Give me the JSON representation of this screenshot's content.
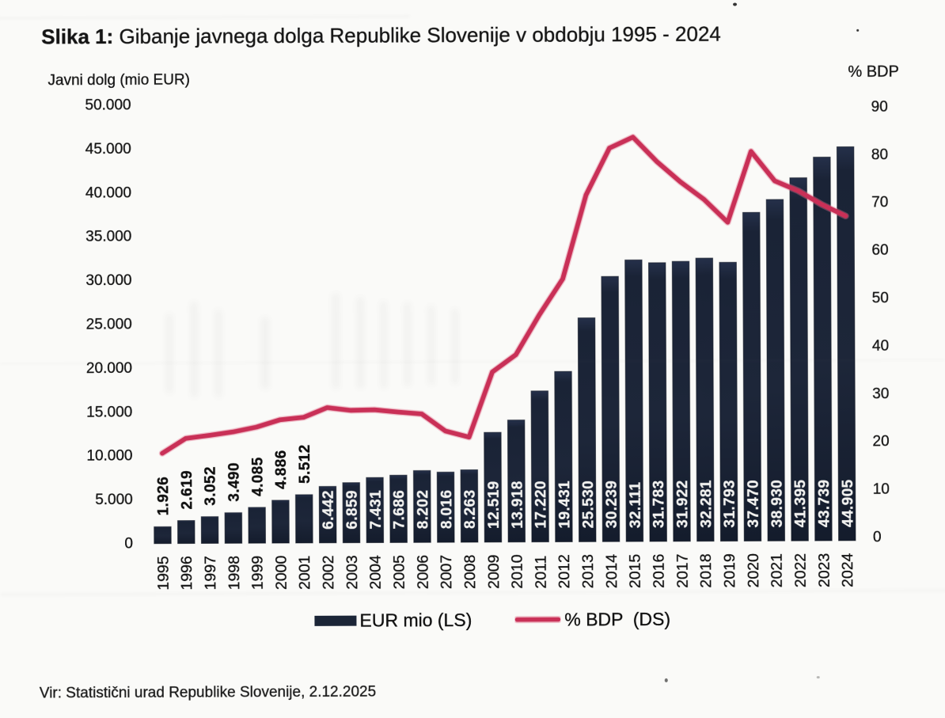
{
  "title": {
    "label": "Slika 1:",
    "text": " Gibanje javnega dolga Republike Slovenije v obdobju 1995 - 2024"
  },
  "source": "Vir: Statistični urad Republike Slovenije, 2.12.2025",
  "legend": [
    {
      "label": "EUR mio (LS)",
      "swatch": "bar",
      "color": "#1b2537"
    },
    {
      "label": "% BDP  (DS)",
      "swatch": "line",
      "color": "#cb3059"
    }
  ],
  "chart_data": {
    "type": "bar+line",
    "categories": [
      "1995",
      "1996",
      "1997",
      "1998",
      "1999",
      "2000",
      "2001",
      "2002",
      "2003",
      "2004",
      "2005",
      "2006",
      "2007",
      "2008",
      "2009",
      "2010",
      "2011",
      "2012",
      "2013",
      "2014",
      "2015",
      "2016",
      "2017",
      "2018",
      "2019",
      "2020",
      "2021",
      "2022",
      "2023",
      "2024"
    ],
    "series": [
      {
        "name": "EUR mio (LS)",
        "type": "bar",
        "axis": "left",
        "values": [
          1926,
          2619,
          3052,
          3490,
          4085,
          4886,
          5512,
          6442,
          6859,
          7431,
          7686,
          8202,
          8016,
          8263,
          12519,
          13918,
          17220,
          19431,
          25530,
          30239,
          32111,
          31783,
          31922,
          32281,
          31793,
          37470,
          38930,
          41395,
          43739,
          44905
        ],
        "labels": [
          "1.926",
          "2.619",
          "3.052",
          "3.490",
          "4.085",
          "4.886",
          "5.512",
          "6.442",
          "6.859",
          "7.431",
          "7.686",
          "8.202",
          "8.016",
          "8.263",
          "12.519",
          "13.918",
          "17.220",
          "19.431",
          "25.530",
          "30.239",
          "32.111",
          "31.783",
          "31.922",
          "32.281",
          "31.793",
          "37.470",
          "38.930",
          "41.395",
          "43.739",
          "44.905"
        ]
      },
      {
        "name": "% BDP (DS)",
        "type": "line",
        "axis": "right",
        "values": [
          17.9,
          21.0,
          21.6,
          22.3,
          23.3,
          24.8,
          25.3,
          27.3,
          26.7,
          26.8,
          26.3,
          25.9,
          22.3,
          21.0,
          34.6,
          38.2,
          46.5,
          54.0,
          71.5,
          81.3,
          83.6,
          78.5,
          74.2,
          70.5,
          65.7,
          80.5,
          74.3,
          72.2,
          69.3,
          66.9
        ]
      }
    ],
    "left_axis": {
      "title": "Javni dolg (mio EUR)",
      "min": 0,
      "max": 50000,
      "tick_values": [
        0,
        5000,
        10000,
        15000,
        20000,
        25000,
        30000,
        35000,
        40000,
        45000,
        50000
      ],
      "tick_labels": [
        "0",
        "5.000",
        "10.000",
        "15.000",
        "20.000",
        "25.000",
        "30.000",
        "35.000",
        "40.000",
        "45.000",
        "50.000"
      ]
    },
    "right_axis": {
      "title": "% BDP",
      "min": 0,
      "max": 90,
      "tick_values": [
        0,
        10,
        20,
        30,
        40,
        50,
        60,
        70,
        80,
        90
      ],
      "tick_labels": [
        "0",
        "10",
        "20",
        "30",
        "40",
        "50",
        "60",
        "70",
        "80",
        "90"
      ]
    },
    "bar_color": "#1b2537",
    "line_color": "#cb3059"
  }
}
